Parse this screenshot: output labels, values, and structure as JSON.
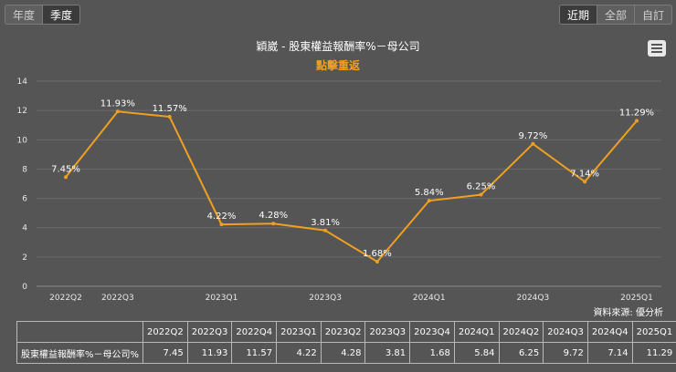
{
  "controls": {
    "left": [
      {
        "label": "年度",
        "active": false
      },
      {
        "label": "季度",
        "active": true
      }
    ],
    "right": [
      {
        "label": "近期",
        "active": true
      },
      {
        "label": "全部",
        "active": false
      },
      {
        "label": "自訂",
        "active": false
      }
    ]
  },
  "chart_title": "穎崴 - 股東權益報酬率%－母公司",
  "chart_subtitle": "點擊重返",
  "source": "資料來源: 優分析",
  "menu_icon": "hamburger-menu-icon",
  "colors": {
    "line": "#f0a020",
    "background": "#555555",
    "grid": "#6a6a6a"
  },
  "chart_data": {
    "type": "line",
    "title": "穎崴 - 股東權益報酬率%－母公司",
    "series_name": "股東權益報酬率%－母公司",
    "categories": [
      "2022Q2",
      "2022Q3",
      "2022Q4",
      "2023Q1",
      "2023Q2",
      "2023Q3",
      "2023Q4",
      "2024Q1",
      "2024Q2",
      "2024Q3",
      "2024Q4",
      "2025Q1"
    ],
    "values": [
      7.45,
      11.93,
      11.57,
      4.22,
      4.28,
      3.81,
      1.68,
      5.84,
      6.25,
      9.72,
      7.14,
      11.29
    ],
    "data_labels": [
      "7.45%",
      "11.93%",
      "11.57%",
      "4.22%",
      "4.28%",
      "3.81%",
      "1.68%",
      "5.84%",
      "6.25%",
      "9.72%",
      "7.14%",
      "11.29%"
    ],
    "x_tick_labels": [
      "2022Q2",
      "2022Q3",
      "",
      "2023Q1",
      "",
      "2023Q3",
      "",
      "2024Q1",
      "",
      "2024Q3",
      "",
      "2025Q1"
    ],
    "y_ticks": [
      0,
      2,
      4,
      6,
      8,
      10,
      12,
      14
    ],
    "ylim": [
      0,
      14
    ]
  },
  "table": {
    "row_label": "股東權益報酬率%－母公司%",
    "headers": [
      "2022Q2",
      "2022Q3",
      "2022Q4",
      "2023Q1",
      "2023Q2",
      "2023Q3",
      "2023Q4",
      "2024Q1",
      "2024Q2",
      "2024Q3",
      "2024Q4",
      "2025Q1"
    ],
    "values": [
      "7.45",
      "11.93",
      "11.57",
      "4.22",
      "4.28",
      "3.81",
      "1.68",
      "5.84",
      "6.25",
      "9.72",
      "7.14",
      "11.29"
    ]
  }
}
